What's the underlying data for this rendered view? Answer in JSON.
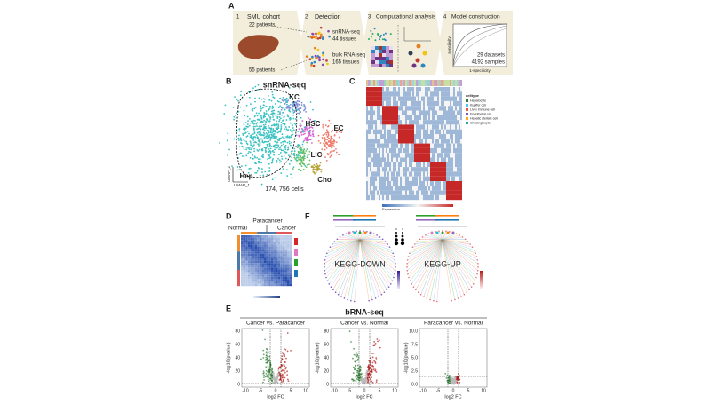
{
  "panels": {
    "A": {
      "label": "A",
      "steps": [
        {
          "num": "1",
          "title": "SMU cohort"
        },
        {
          "num": "2",
          "title": "Detection"
        },
        {
          "num": "3",
          "title": "Computational analysis"
        },
        {
          "num": "4",
          "title": "Model construction"
        }
      ],
      "cohort": {
        "top": "22 patients",
        "bottom": "55 patients"
      },
      "detection": [
        {
          "method": "snRNA-seq",
          "tissues": "44 tissues"
        },
        {
          "method": "bulk RNA-seq",
          "tissues": "165 tissues"
        }
      ],
      "model": {
        "datasets": "29 datasets",
        "samples": "4192 samples",
        "y_axis": "sensitivity",
        "x_axis": "1-specificity"
      }
    },
    "B": {
      "label": "B",
      "title": "snRNA-seq",
      "clusters": [
        "KC",
        "HSC",
        "EC",
        "LIC",
        "Hep",
        "Cho"
      ],
      "x_axis": "UMAP_1",
      "y_axis": "UMAP_2",
      "cells": "174, 756 cells"
    },
    "C": {
      "label": "C",
      "legend_title": "celltype",
      "celltypes": [
        "Hepatocyte",
        "Kupffer cell",
        "Liver immune cell",
        "Endothelial cell",
        "Hepatic stellate cell",
        "Cholangiocyte"
      ],
      "colorbar": "Expression"
    },
    "D": {
      "label": "D",
      "groups": {
        "normal": "Normal",
        "paracancer": "Paracancer",
        "cancer": "Cancer"
      }
    },
    "F": {
      "label": "F",
      "down": "KEGG-DOWN",
      "up": "KEGG-UP"
    },
    "E": {
      "label": "E",
      "title": "bRNA-seq",
      "y_axis": "-log10(pvalue)",
      "x_axis": "log2 FC",
      "plots": [
        {
          "title": "Cancer vs. Paracancer",
          "yticks": [
            0,
            20,
            40,
            60,
            80
          ],
          "xticks": [
            -10,
            -5,
            0,
            5,
            10
          ]
        },
        {
          "title": "Cancer vs. Normal",
          "yticks": [
            0,
            20,
            40,
            60,
            80
          ],
          "xticks": [
            -10,
            -5,
            0,
            5,
            10
          ]
        },
        {
          "title": "Paracancer vs. Normal",
          "yticks": [
            "0.0",
            "2.5",
            "5.0",
            "7.5",
            "10.0"
          ],
          "xticks": [
            -10,
            -5,
            0,
            5,
            10
          ]
        }
      ]
    }
  }
}
